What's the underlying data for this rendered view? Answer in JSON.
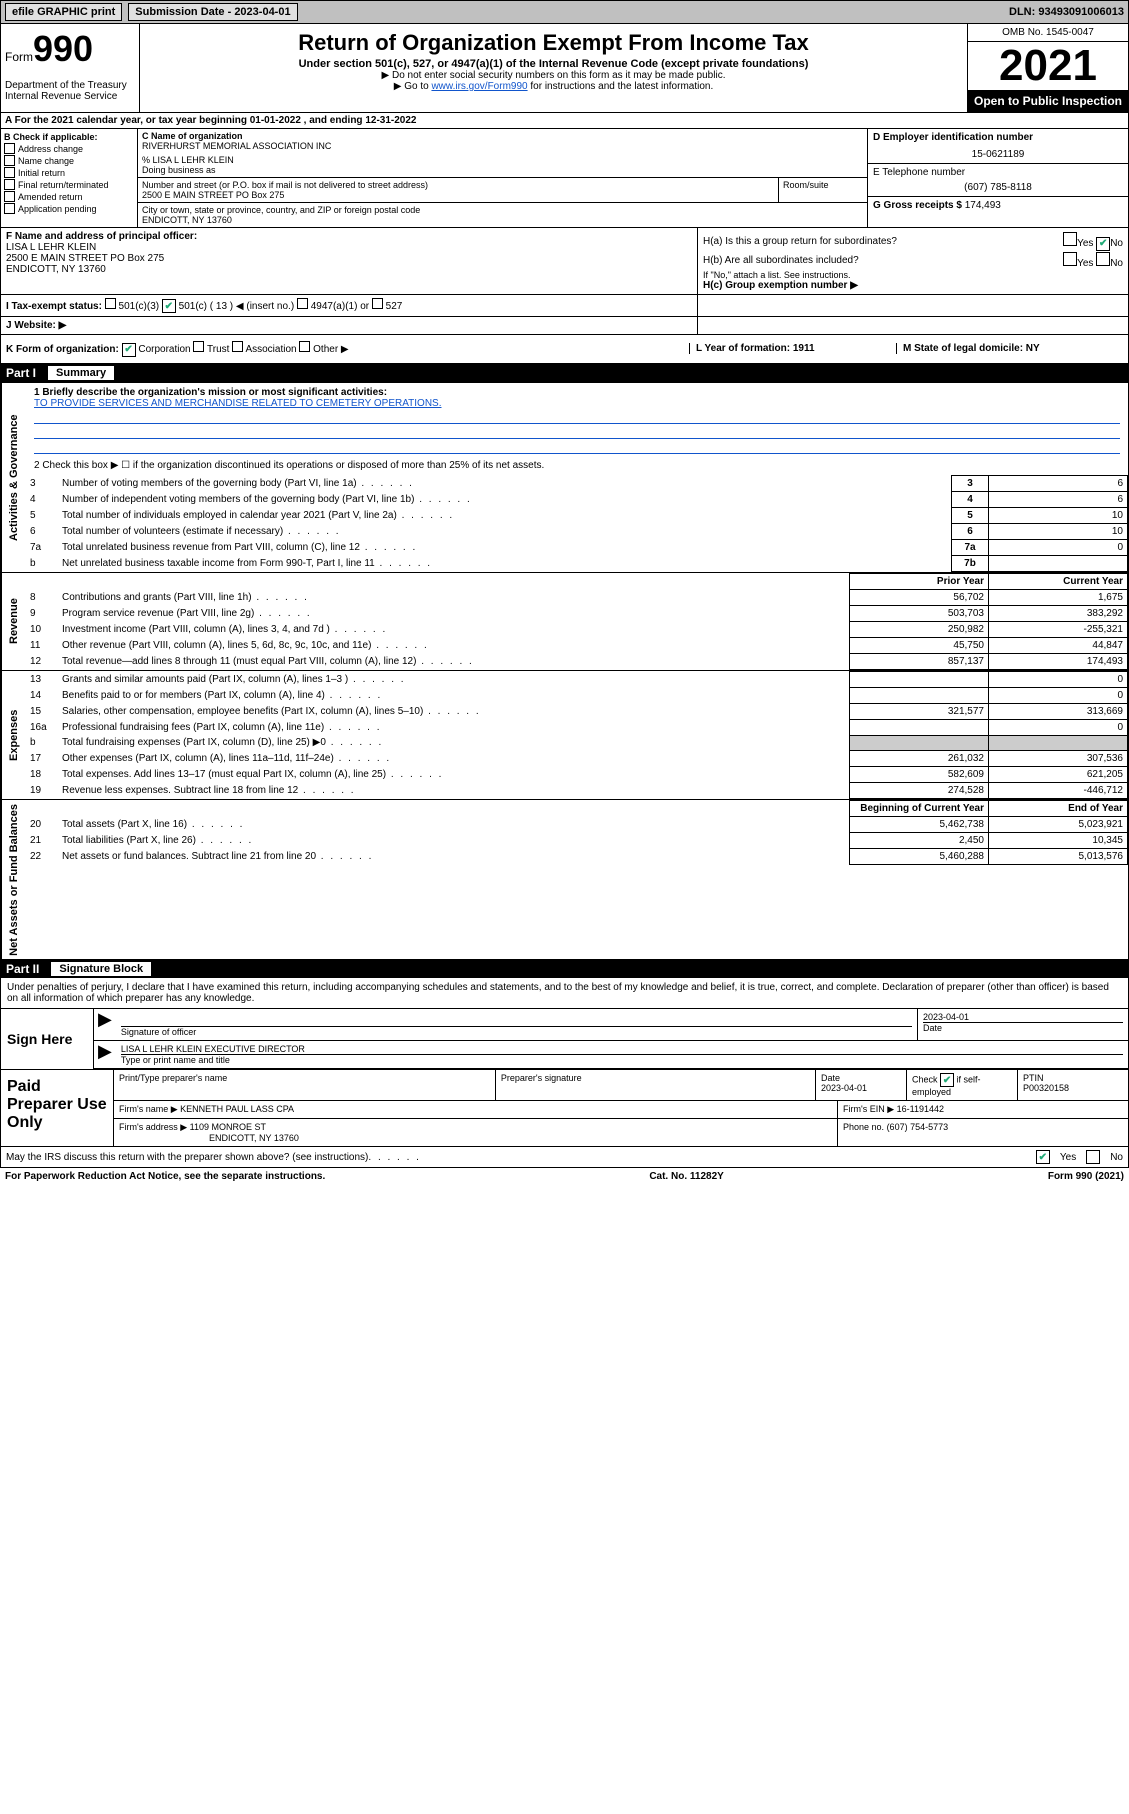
{
  "topbar": {
    "efile": "efile GRAPHIC print",
    "submission_label": "Submission Date - 2023-04-01",
    "dln": "DLN: 93493091006013"
  },
  "header": {
    "form_small": "Form",
    "form_big": "990",
    "title": "Return of Organization Exempt From Income Tax",
    "subtitle": "Under section 501(c), 527, or 4947(a)(1) of the Internal Revenue Code (except private foundations)",
    "note1": "▶ Do not enter social security numbers on this form as it may be made public.",
    "note2_pre": "▶ Go to ",
    "note2_link": "www.irs.gov/Form990",
    "note2_post": " for instructions and the latest information.",
    "dept": "Department of the Treasury\nInternal Revenue Service",
    "omb": "OMB No. 1545-0047",
    "year": "2021",
    "open": "Open to Public Inspection"
  },
  "row_a": "A For the 2021 calendar year, or tax year beginning 01-01-2022      , and ending 12-31-2022",
  "section_b": {
    "heading": "B Check if applicable:",
    "items": [
      "Address change",
      "Name change",
      "Initial return",
      "Final return/terminated",
      "Amended return",
      "Application pending"
    ]
  },
  "section_c": {
    "label_name": "C Name of organization",
    "org_name": "RIVERHURST MEMORIAL ASSOCIATION INC",
    "care_of": "% LISA L LEHR KLEIN",
    "dba_label": "Doing business as",
    "addr_label": "Number and street (or P.O. box if mail is not delivered to street address)",
    "addr": "2500 E MAIN STREET PO Box 275",
    "room_label": "Room/suite",
    "city_label": "City or town, state or province, country, and ZIP or foreign postal code",
    "city": "ENDICOTT, NY   13760"
  },
  "section_d": {
    "ein_label": "D Employer identification number",
    "ein": "15-0621189",
    "tel_label": "E Telephone number",
    "tel": "(607) 785-8118",
    "gross_label": "G Gross receipts $",
    "gross": "174,493"
  },
  "section_f": {
    "label": "F Name and address of principal officer:",
    "name": "LISA L LEHR KLEIN",
    "addr1": "2500 E MAIN STREET PO Box 275",
    "addr2": "ENDICOTT, NY   13760"
  },
  "section_h": {
    "ha": "H(a)  Is this a group return for subordinates?",
    "hb": "H(b)  Are all subordinates included?",
    "note": "If \"No,\" attach a list. See instructions.",
    "hc": "H(c)  Group exemption number ▶",
    "yes": "Yes",
    "no": "No"
  },
  "row_i": {
    "label": "I   Tax-exempt status:",
    "o1": "501(c)(3)",
    "o2": "501(c) ( 13 ) ◀ (insert no.)",
    "o3": "4947(a)(1) or",
    "o4": "527"
  },
  "row_j": "J   Website: ▶",
  "row_k": {
    "label": "K Form of organization:",
    "o1": "Corporation",
    "o2": "Trust",
    "o3": "Association",
    "o4": "Other ▶",
    "l": "L Year of formation: 1911",
    "m": "M State of legal domicile: NY"
  },
  "part1": {
    "header": "Part I",
    "title": "Summary",
    "mission_label": "1   Briefly describe the organization's mission or most significant activities:",
    "mission": "TO PROVIDE SERVICES AND MERCHANDISE RELATED TO CEMETERY OPERATIONS.",
    "line2": "2   Check this box ▶ ☐ if the organization discontinued its operations or disposed of more than 25% of its net assets.",
    "side_labels": [
      "Activities & Governance",
      "Revenue",
      "Expenses",
      "Net Assets or Fund Balances"
    ],
    "rows_gov": [
      {
        "n": "3",
        "t": "Number of voting members of the governing body (Part VI, line 1a)",
        "b": "3",
        "v": "6"
      },
      {
        "n": "4",
        "t": "Number of independent voting members of the governing body (Part VI, line 1b)",
        "b": "4",
        "v": "6"
      },
      {
        "n": "5",
        "t": "Total number of individuals employed in calendar year 2021 (Part V, line 2a)",
        "b": "5",
        "v": "10"
      },
      {
        "n": "6",
        "t": "Total number of volunteers (estimate if necessary)",
        "b": "6",
        "v": "10"
      },
      {
        "n": "7a",
        "t": "Total unrelated business revenue from Part VIII, column (C), line 12",
        "b": "7a",
        "v": "0"
      },
      {
        "n": "b",
        "t": "Net unrelated business taxable income from Form 990-T, Part I, line 11",
        "b": "7b",
        "v": ""
      }
    ],
    "col_prior": "Prior Year",
    "col_curr": "Current Year",
    "rows_rev": [
      {
        "n": "8",
        "t": "Contributions and grants (Part VIII, line 1h)",
        "p": "56,702",
        "c": "1,675"
      },
      {
        "n": "9",
        "t": "Program service revenue (Part VIII, line 2g)",
        "p": "503,703",
        "c": "383,292"
      },
      {
        "n": "10",
        "t": "Investment income (Part VIII, column (A), lines 3, 4, and 7d )",
        "p": "250,982",
        "c": "-255,321"
      },
      {
        "n": "11",
        "t": "Other revenue (Part VIII, column (A), lines 5, 6d, 8c, 9c, 10c, and 11e)",
        "p": "45,750",
        "c": "44,847"
      },
      {
        "n": "12",
        "t": "Total revenue—add lines 8 through 11 (must equal Part VIII, column (A), line 12)",
        "p": "857,137",
        "c": "174,493"
      }
    ],
    "rows_exp": [
      {
        "n": "13",
        "t": "Grants and similar amounts paid (Part IX, column (A), lines 1–3 )",
        "p": "",
        "c": "0"
      },
      {
        "n": "14",
        "t": "Benefits paid to or for members (Part IX, column (A), line 4)",
        "p": "",
        "c": "0"
      },
      {
        "n": "15",
        "t": "Salaries, other compensation, employee benefits (Part IX, column (A), lines 5–10)",
        "p": "321,577",
        "c": "313,669"
      },
      {
        "n": "16a",
        "t": "Professional fundraising fees (Part IX, column (A), line 11e)",
        "p": "",
        "c": "0"
      },
      {
        "n": "b",
        "t": "Total fundraising expenses (Part IX, column (D), line 25) ▶0",
        "p": "BLANK",
        "c": "BLANK"
      },
      {
        "n": "17",
        "t": "Other expenses (Part IX, column (A), lines 11a–11d, 11f–24e)",
        "p": "261,032",
        "c": "307,536"
      },
      {
        "n": "18",
        "t": "Total expenses. Add lines 13–17 (must equal Part IX, column (A), line 25)",
        "p": "582,609",
        "c": "621,205"
      },
      {
        "n": "19",
        "t": "Revenue less expenses. Subtract line 18 from line 12",
        "p": "274,528",
        "c": "-446,712"
      }
    ],
    "col_beg": "Beginning of Current Year",
    "col_end": "End of Year",
    "rows_net": [
      {
        "n": "20",
        "t": "Total assets (Part X, line 16)",
        "p": "5,462,738",
        "c": "5,023,921"
      },
      {
        "n": "21",
        "t": "Total liabilities (Part X, line 26)",
        "p": "2,450",
        "c": "10,345"
      },
      {
        "n": "22",
        "t": "Net assets or fund balances. Subtract line 21 from line 20",
        "p": "5,460,288",
        "c": "5,013,576"
      }
    ]
  },
  "part2": {
    "header": "Part II",
    "title": "Signature Block",
    "decl": "Under penalties of perjury, I declare that I have examined this return, including accompanying schedules and statements, and to the best of my knowledge and belief, it is true, correct, and complete. Declaration of preparer (other than officer) is based on all information of which preparer has any knowledge.",
    "sign_here": "Sign Here",
    "sig_of_officer": "Signature of officer",
    "date": "2023-04-01",
    "date_label": "Date",
    "officer_name": "LISA L LEHR KLEIN  EXECUTIVE DIRECTOR",
    "officer_label": "Type or print name and title"
  },
  "paid": {
    "label": "Paid Preparer Use Only",
    "h1": "Print/Type preparer's name",
    "h2": "Preparer's signature",
    "h3": "Date",
    "h3v": "2023-04-01",
    "h4": "Check ☑ if self-employed",
    "h5": "PTIN",
    "h5v": "P00320158",
    "firm_name_l": "Firm's name      ▶",
    "firm_name": "KENNETH PAUL LASS CPA",
    "firm_ein_l": "Firm's EIN ▶",
    "firm_ein": "16-1191442",
    "firm_addr_l": "Firm's address ▶",
    "firm_addr1": "1109 MONROE ST",
    "firm_addr2": "ENDICOTT, NY   13760",
    "phone_l": "Phone no.",
    "phone": "(607) 754-5773"
  },
  "may": {
    "text": "May the IRS discuss this return with the preparer shown above? (see instructions)",
    "yes": "Yes",
    "no": "No"
  },
  "footer": {
    "l": "For Paperwork Reduction Act Notice, see the separate instructions.",
    "m": "Cat. No. 11282Y",
    "r": "Form 990 (2021)"
  }
}
